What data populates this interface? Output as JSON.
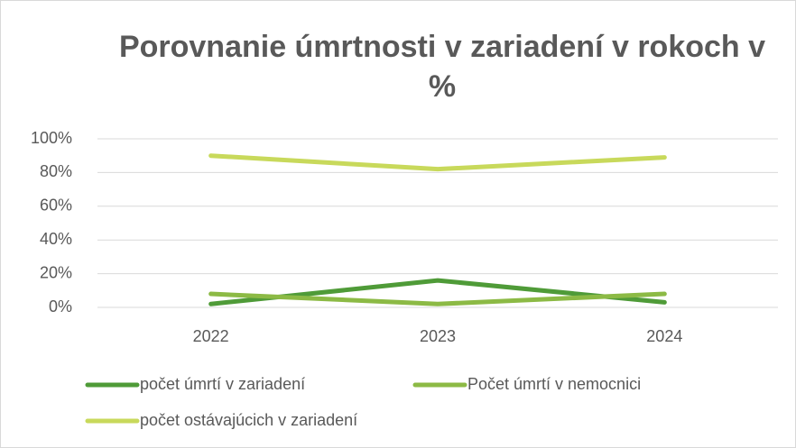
{
  "chart_data": {
    "type": "line",
    "title": "Porovnanie úmrtnosti v zariadení v rokoch v %",
    "categories": [
      "2022",
      "2023",
      "2024"
    ],
    "series": [
      {
        "name": "počet úmrtí v zariadení",
        "color": "#4f9b38",
        "values": [
          2,
          16,
          3
        ]
      },
      {
        "name": "Počet úmrtí v nemocnici",
        "color": "#8cba45",
        "values": [
          8,
          2,
          8
        ]
      },
      {
        "name": "počet ostávajúcich v zariadení",
        "color": "#c8d95b",
        "values": [
          90,
          82,
          89
        ]
      }
    ],
    "ylim": [
      0,
      100
    ],
    "yticks": [
      {
        "value": 0,
        "label": "0%"
      },
      {
        "value": 20,
        "label": "20%"
      },
      {
        "value": 40,
        "label": "40%"
      },
      {
        "value": 60,
        "label": "60%"
      },
      {
        "value": 80,
        "label": "80%"
      },
      {
        "value": 100,
        "label": "100%"
      }
    ],
    "grid": true,
    "legend": "bottom"
  }
}
